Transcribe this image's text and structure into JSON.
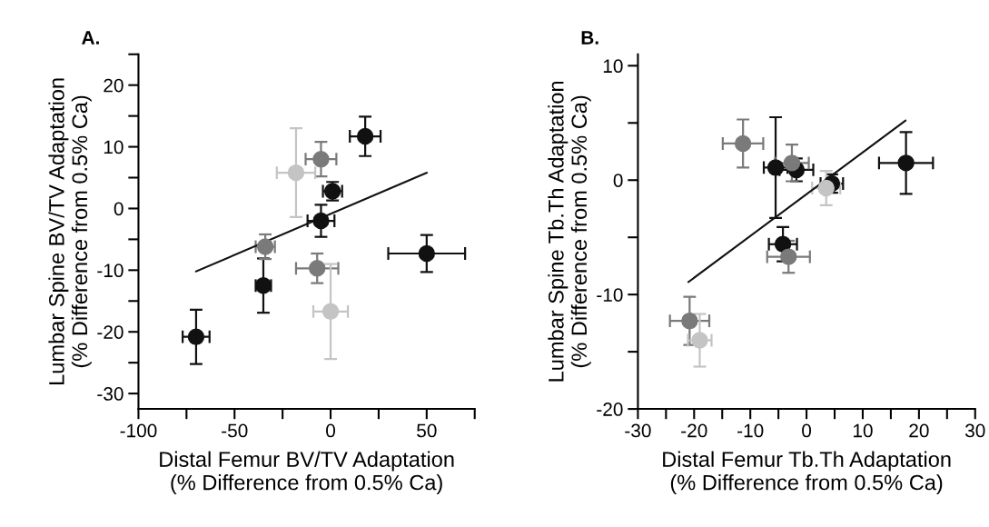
{
  "chart_data": [
    {
      "type": "scatter",
      "title": "A.",
      "xlabel": "Distal Femur BV/TV Adaptation\n(% Difference from 0.5% Ca)",
      "ylabel": "Lumbar Spine BV/TV Adaptation\n(% Difference from 0.5% Ca)",
      "xlim": [
        -100,
        75
      ],
      "ylim": [
        -32.5,
        25
      ],
      "xticks": [
        -100,
        {
          "value": -75,
          "label": null
        },
        -50,
        {
          "value": -25,
          "label": null
        },
        0,
        {
          "value": 25,
          "label": null
        },
        50,
        {
          "value": 75,
          "label": null
        }
      ],
      "yticks": [
        -30,
        {
          "value": -25,
          "label": null
        },
        -20,
        {
          "value": -15,
          "label": null
        },
        -10,
        {
          "value": -5,
          "label": null
        },
        0,
        {
          "value": 5,
          "label": null
        },
        10,
        {
          "value": 15,
          "label": null
        },
        20,
        {
          "value": 25,
          "label": null
        }
      ],
      "marker": "circle",
      "grid": false,
      "legend": false,
      "series": [
        {
          "color": "#111111",
          "x": [
            -70,
            -35,
            -5,
            1,
            18,
            50
          ],
          "values": [
            -20.8,
            -12.5,
            -2.0,
            2.8,
            11.7,
            -7.3
          ],
          "xerrors": [
            7,
            4,
            7,
            5,
            8,
            20
          ],
          "errors": [
            4.4,
            4.4,
            2.6,
            1.5,
            3.2,
            3
          ]
        },
        {
          "color": "#7a7a7a",
          "x": [
            -34,
            -5,
            -7
          ],
          "values": [
            -6.2,
            8,
            -9.7
          ],
          "xerrors": [
            5,
            8,
            11
          ],
          "errors": [
            2,
            2.8,
            2.4
          ]
        },
        {
          "color": "#c4c4c4",
          "x": [
            -18,
            0
          ],
          "values": [
            5.8,
            -16.7
          ],
          "xerrors": [
            10,
            9
          ],
          "errors": [
            7.2,
            7.7
          ]
        },
        {
          "type": "line",
          "marker": "none",
          "color": "#111111",
          "x": [
            -70,
            50
          ],
          "values": [
            -10.2,
            5.8
          ]
        }
      ]
    },
    {
      "type": "scatter",
      "title": "B.",
      "xlabel": "Distal Femur Tb.Th Adaptation\n(% Difference from 0.5% Ca)",
      "ylabel": "Lumbar Spine Tb.Th Adaptation\n(% Difference from 0.5% Ca)",
      "xlim": [
        -30,
        30
      ],
      "ylim": [
        -20,
        11
      ],
      "xticks": [
        -30,
        {
          "value": -25,
          "label": null
        },
        -20,
        {
          "value": -15,
          "label": null
        },
        -10,
        {
          "value": -5,
          "label": null
        },
        0,
        {
          "value": 5,
          "label": null
        },
        10,
        {
          "value": 15,
          "label": null
        },
        20,
        {
          "value": 25,
          "label": null
        },
        30
      ],
      "yticks": [
        -20,
        {
          "value": -15,
          "label": null
        },
        -10,
        {
          "value": -5,
          "label": null
        },
        0,
        {
          "value": 5,
          "label": null
        },
        10
      ],
      "marker": "circle",
      "grid": false,
      "legend": false,
      "series": [
        {
          "color": "#111111",
          "x": [
            -5.5,
            -1.8,
            4.5,
            17.7,
            -4.2
          ],
          "values": [
            1.1,
            0.9,
            -0.3,
            1.5,
            -5.6
          ],
          "xerrors": [
            2.1,
            3,
            2,
            4.8,
            2.5
          ],
          "errors": [
            4.4,
            1,
            0.8,
            2.7,
            1.5
          ]
        },
        {
          "color": "#7a7a7a",
          "x": [
            -11.3,
            -2.6,
            -3.2,
            -20.8
          ],
          "values": [
            3.2,
            1.5,
            -6.7,
            -12.3
          ],
          "xerrors": [
            3.6,
            3,
            3.8,
            3.5
          ],
          "errors": [
            2.1,
            1.6,
            1.4,
            2.1
          ]
        },
        {
          "color": "#c4c4c4",
          "x": [
            3.5,
            -19.0
          ],
          "values": [
            -0.7,
            -14.0
          ],
          "xerrors": [
            2.5,
            2.1
          ],
          "errors": [
            1.5,
            2.3
          ]
        },
        {
          "type": "line",
          "marker": "none",
          "color": "#111111",
          "x": [
            -21,
            17.6
          ],
          "values": [
            -8.9,
            5.2
          ]
        }
      ]
    }
  ]
}
